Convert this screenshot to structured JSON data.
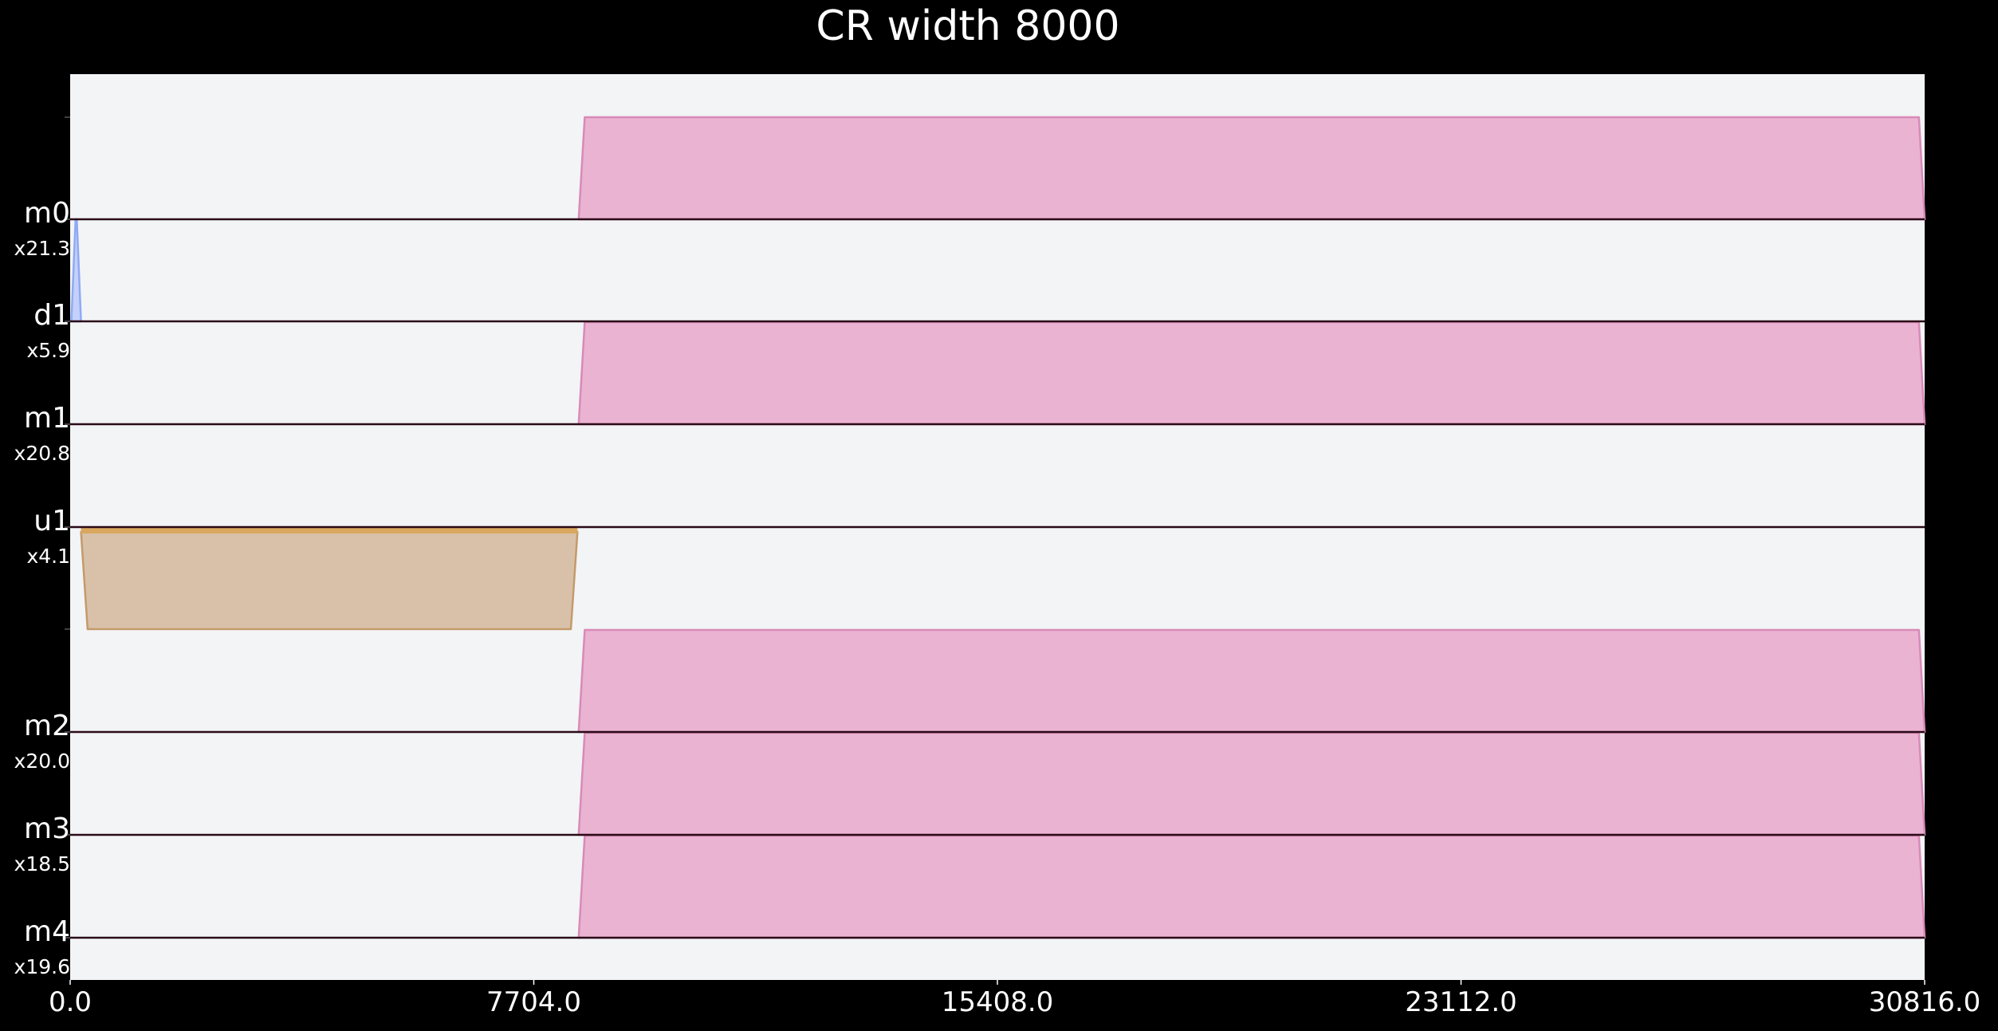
{
  "chart_data": {
    "type": "area",
    "title": "CR width 8000",
    "xlim": [
      0,
      30816
    ],
    "x_ticks": [
      "0.0",
      "7704.0",
      "15408.0",
      "23112.0",
      "30816.0"
    ],
    "x_tick_values": [
      0,
      7704,
      15408,
      23112,
      30816
    ],
    "background": "#f2f4f6",
    "baseline_color": "#2a0a16",
    "tracks": [
      {
        "label": "m0",
        "scale": "x21.3",
        "color_fill": "#ebb3d2",
        "color_edge": "#d88ab8",
        "direction": "up",
        "pulses": [
          {
            "start": 8450,
            "plateau_start": 8550,
            "plateau_end": 30720,
            "end": 30816
          }
        ]
      },
      {
        "label": "d1",
        "scale": "x5.9",
        "color_fill": "#c4d2fb",
        "color_edge": "#90a9f5",
        "direction": "up",
        "pulses": [
          {
            "start": 20,
            "plateau_start": 90,
            "plateau_end": 110,
            "end": 180
          }
        ]
      },
      {
        "label": "m1",
        "scale": "x20.8",
        "color_fill": "#ebb3d2",
        "color_edge": "#d88ab8",
        "direction": "up",
        "pulses": [
          {
            "start": 8450,
            "plateau_start": 8550,
            "plateau_end": 30720,
            "end": 30816
          }
        ]
      },
      {
        "label": "u1",
        "scale": "x4.1",
        "color_fill": "#d9c1a9",
        "color_edge": "#c49a6a",
        "direction": "down",
        "pulses": [
          {
            "start": 180,
            "plateau_start": 290,
            "plateau_end": 8320,
            "end": 8430
          }
        ]
      },
      {
        "label": "m2",
        "scale": "x20.0",
        "color_fill": "#ebb3d2",
        "color_edge": "#d88ab8",
        "direction": "up",
        "pulses": [
          {
            "start": 8450,
            "plateau_start": 8550,
            "plateau_end": 30720,
            "end": 30816
          }
        ]
      },
      {
        "label": "m3",
        "scale": "x18.5",
        "color_fill": "#ebb3d2",
        "color_edge": "#d88ab8",
        "direction": "up",
        "pulses": [
          {
            "start": 8450,
            "plateau_start": 8550,
            "plateau_end": 30720,
            "end": 30816
          }
        ]
      },
      {
        "label": "m4",
        "scale": "x19.6",
        "color_fill": "#ebb3d2",
        "color_edge": "#d88ab8",
        "direction": "up",
        "pulses": [
          {
            "start": 8450,
            "plateau_start": 8550,
            "plateau_end": 30720,
            "end": 30816
          }
        ]
      }
    ]
  }
}
